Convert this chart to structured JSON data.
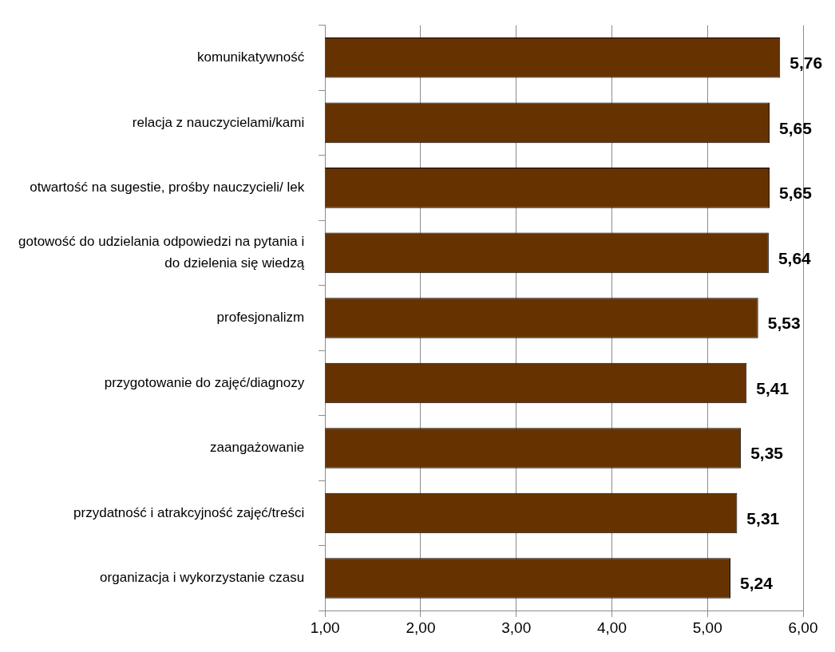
{
  "chart_data": {
    "type": "bar",
    "orientation": "horizontal",
    "categories": [
      "komunikatywność",
      "relacja z nauczycielami/kami",
      "otwartość na sugestie, prośby nauczycieli/ lek",
      "gotowość do udzielania odpowiedzi na pytania i do dzielenia się wiedzą",
      "profesjonalizm",
      "przygotowanie do zajęć/diagnozy",
      "zaangażowanie",
      "przydatność i atrakcyjność zajęć/treści",
      "organizacja i wykorzystanie czasu"
    ],
    "values": [
      5.76,
      5.65,
      5.65,
      5.64,
      5.53,
      5.41,
      5.35,
      5.31,
      5.24
    ],
    "value_labels": [
      "5,76",
      "5,65",
      "5,65",
      "5,64",
      "5,53",
      "5,41",
      "5,35",
      "5,31",
      "5,24"
    ],
    "color": "#663300",
    "xlim": [
      1,
      6
    ],
    "xticks": [
      {
        "value": 1,
        "label": "1,00"
      },
      {
        "value": 2,
        "label": "2,00"
      },
      {
        "value": 3,
        "label": "3,00"
      },
      {
        "value": 4,
        "label": "4,00"
      },
      {
        "value": 5,
        "label": "5,00"
      },
      {
        "value": 6,
        "label": "6,00"
      }
    ],
    "grid": "x",
    "legend": false
  }
}
